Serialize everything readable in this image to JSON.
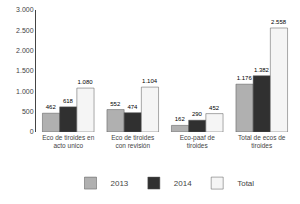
{
  "chart_data": {
    "type": "bar",
    "categories": [
      "Eco de tiroides en\nacto unico",
      "Eco de tiroides\ncon revisión",
      "Eco-paaf de\ntiroides",
      "Total de ecos de\ntiroides"
    ],
    "series": [
      {
        "name": "2013",
        "color": "#b0b0b0",
        "values": [
          462,
          552,
          162,
          1176
        ],
        "value_labels": [
          "462",
          "552",
          "162",
          "1.176"
        ]
      },
      {
        "name": "2014",
        "color": "#303030",
        "values": [
          618,
          474,
          290,
          1382
        ],
        "value_labels": [
          "618",
          "474",
          "290",
          "1.382"
        ]
      },
      {
        "name": "Total",
        "color": "#f5f5f5",
        "values": [
          1080,
          1104,
          452,
          2558
        ],
        "value_labels": [
          "1.080",
          "1.104",
          "452",
          "2.558"
        ]
      }
    ],
    "ylim": [
      0,
      3000
    ],
    "yticks": [
      0,
      500,
      {
        "value": 1000,
        "label": "1.000"
      },
      {
        "value": 1500,
        "label": "1.500"
      },
      {
        "value": 2000,
        "label": "2.000"
      },
      {
        "value": 2500,
        "label": "2.500"
      },
      {
        "value": 3000,
        "label": "3.000"
      }
    ],
    "grid": false,
    "legend": "bottom",
    "data_labels": true
  }
}
